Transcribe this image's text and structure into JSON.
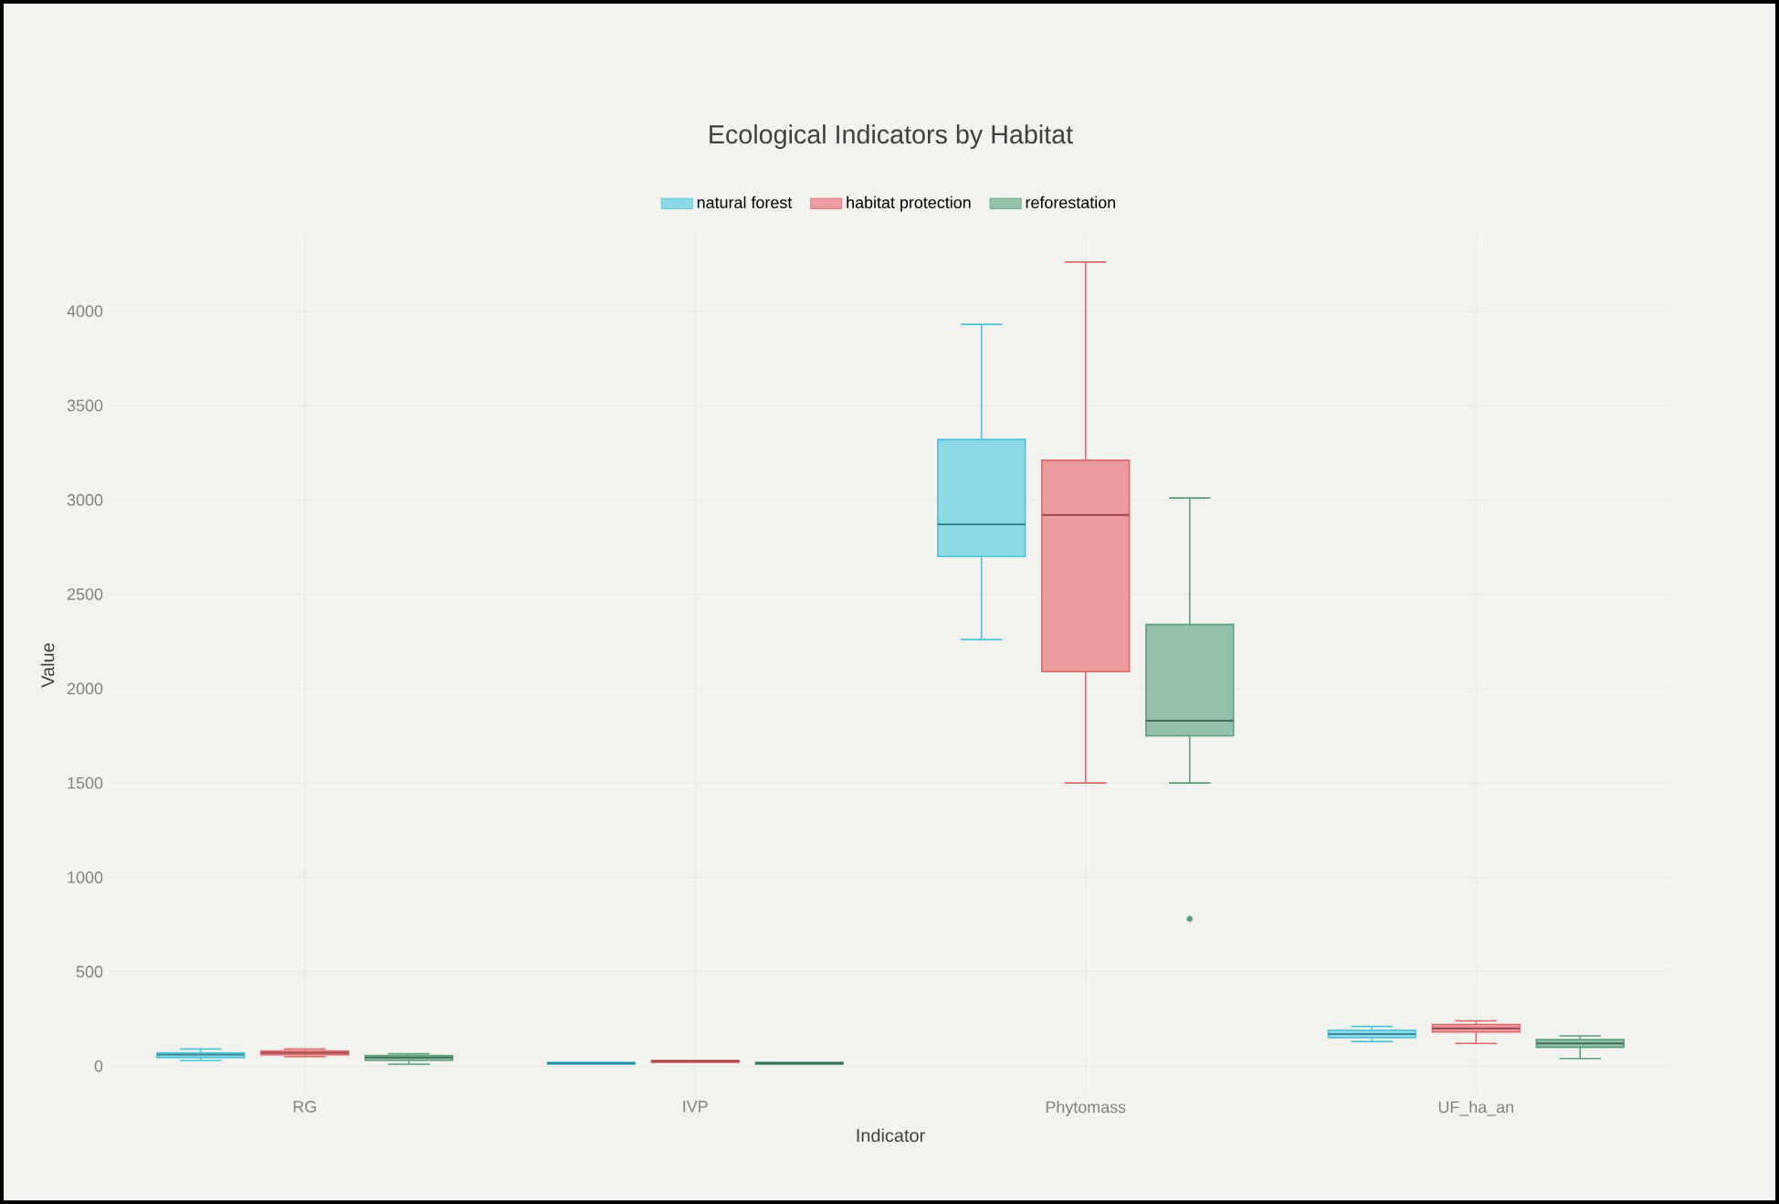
{
  "chart_data": {
    "type": "box",
    "title": "Ecological Indicators by Habitat",
    "xlabel": "Indicator",
    "ylabel": "Value",
    "categories": [
      "RG",
      "IVP",
      "Phytomass",
      "UF_ha_an"
    ],
    "series": [
      {
        "name": "natural forest",
        "color": "#4fc3d9",
        "boxes": [
          {
            "low": 30,
            "q1": 45,
            "median": 60,
            "q3": 70,
            "high": 90
          },
          {
            "low": 10,
            "q1": 10,
            "median": 15,
            "q3": 20,
            "high": 20
          },
          {
            "low": 2260,
            "q1": 2700,
            "median": 2870,
            "q3": 3320,
            "high": 3930
          },
          {
            "low": 130,
            "q1": 150,
            "median": 170,
            "q3": 190,
            "high": 210
          }
        ]
      },
      {
        "name": "habitat protection",
        "color": "#e0686a",
        "boxes": [
          {
            "low": 50,
            "q1": 60,
            "median": 70,
            "q3": 80,
            "high": 90
          },
          {
            "low": 20,
            "q1": 20,
            "median": 25,
            "q3": 30,
            "high": 30
          },
          {
            "low": 1500,
            "q1": 2090,
            "median": 2920,
            "q3": 3210,
            "high": 4260
          },
          {
            "low": 120,
            "q1": 180,
            "median": 200,
            "q3": 220,
            "high": 240
          }
        ]
      },
      {
        "name": "reforestation",
        "color": "#5a9e7a",
        "boxes": [
          {
            "low": 10,
            "q1": 30,
            "median": 45,
            "q3": 55,
            "high": 65
          },
          {
            "low": 10,
            "q1": 10,
            "median": 15,
            "q3": 20,
            "high": 20
          },
          {
            "low": 1500,
            "q1": 1750,
            "median": 1830,
            "q3": 2340,
            "high": 3010,
            "outliers": [
              780
            ]
          },
          {
            "low": 40,
            "q1": 100,
            "median": 120,
            "q3": 140,
            "high": 160
          }
        ]
      }
    ],
    "ylim": [
      -150,
      4400
    ],
    "yticks": [
      0,
      500,
      1000,
      1500,
      2000,
      2500,
      3000,
      3500,
      4000
    ],
    "grid": true,
    "legend": "top"
  }
}
